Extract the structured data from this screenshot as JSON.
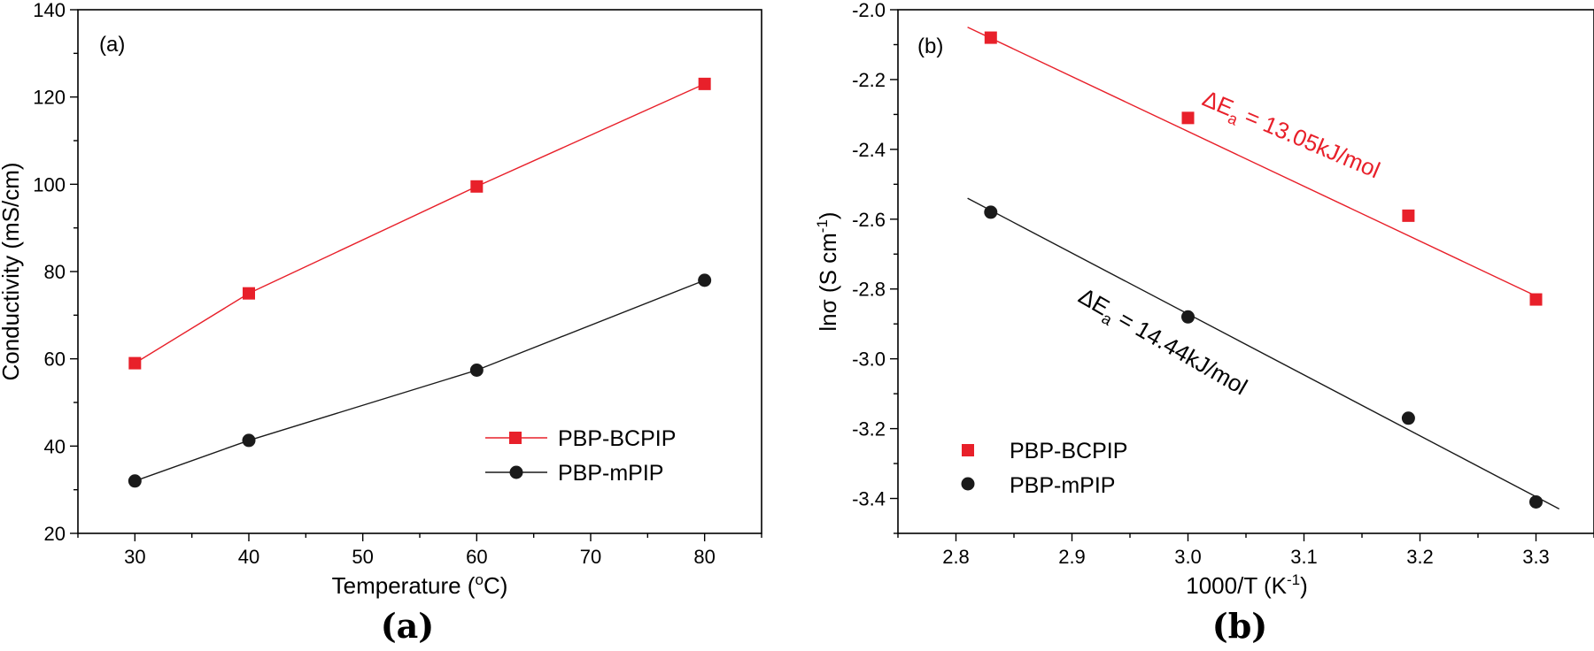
{
  "chart_data": [
    {
      "type": "line",
      "panel_label": "(a)",
      "caption": "(a)",
      "xlabel": "Temperature (",
      "xlabel_sup": "o",
      "xlabel_end": "C)",
      "ylabel": "Conductivity (mS/cm)",
      "xlim": [
        25,
        85
      ],
      "ylim": [
        20,
        140
      ],
      "xticks": [
        30,
        40,
        50,
        60,
        70,
        80
      ],
      "yticks": [
        20,
        40,
        60,
        80,
        100,
        120,
        140
      ],
      "legend_position": "bottom-right",
      "series": [
        {
          "name": "PBP-BCPIP",
          "color": "#e8202a",
          "marker": "square",
          "x": [
            30,
            40,
            60,
            80
          ],
          "y": [
            59,
            75,
            99.5,
            123
          ]
        },
        {
          "name": "PBP-mPIP",
          "color": "#1a1a1a",
          "marker": "circle",
          "x": [
            30,
            40,
            60,
            80
          ],
          "y": [
            32,
            41.3,
            57.4,
            78
          ]
        }
      ]
    },
    {
      "type": "scatter",
      "panel_label": "(b)",
      "caption": "(b)",
      "xlabel": "1000/T (K",
      "xlabel_sup": "-1",
      "xlabel_end": ")",
      "ylabel": "lnσ (S cm",
      "ylabel_sup": "-1",
      "ylabel_end": ")",
      "xlim": [
        2.75,
        3.35
      ],
      "ylim": [
        -3.5,
        -2.0
      ],
      "xticks": [
        2.8,
        2.9,
        3.0,
        3.1,
        3.2,
        3.3
      ],
      "yticks": [
        -2.0,
        -2.2,
        -2.4,
        -2.6,
        -2.8,
        -3.0,
        -3.2,
        -3.4
      ],
      "legend_position": "bottom-left",
      "series": [
        {
          "name": "PBP-BCPIP",
          "color": "#e8202a",
          "marker": "square",
          "x": [
            2.83,
            3.0,
            3.19,
            3.3
          ],
          "y": [
            -2.08,
            -2.31,
            -2.59,
            -2.83
          ],
          "fit": {
            "x": [
              2.81,
              3.3
            ],
            "y": [
              -2.05,
              -2.82
            ]
          }
        },
        {
          "name": "PBP-mPIP",
          "color": "#1a1a1a",
          "marker": "circle",
          "x": [
            2.83,
            3.0,
            3.19,
            3.3
          ],
          "y": [
            -2.58,
            -2.88,
            -3.17,
            -3.41
          ],
          "fit": {
            "x": [
              2.81,
              3.32
            ],
            "y": [
              -2.54,
              -3.43
            ]
          }
        }
      ],
      "annotations": [
        {
          "prefix": "ΔE",
          "sub": "a",
          "text": " = 13.05kJ/mol",
          "color": "#e8202a"
        },
        {
          "prefix": "ΔE",
          "sub": "a",
          "text": " = 14.44kJ/mol",
          "color": "#000000"
        }
      ]
    }
  ]
}
